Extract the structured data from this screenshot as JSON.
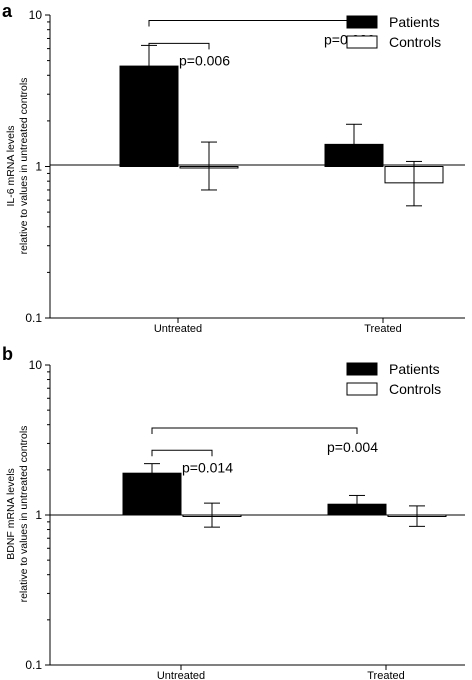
{
  "chart_data": [
    {
      "panel": "a",
      "type": "bar",
      "yscale": "log",
      "ylim": [
        0.1,
        10
      ],
      "yticks": [
        "0.1",
        "1",
        "10"
      ],
      "ylabel_line1": "IL-6 mRNA levels",
      "ylabel_line2": "relative to values in untreated controls",
      "categories": [
        "Untreated",
        "Treated"
      ],
      "series": [
        {
          "name": "Patients",
          "color": "#000000",
          "values": [
            4.6,
            1.4
          ],
          "err_low": [
            3.3,
            1.04
          ],
          "err_high": [
            6.3,
            1.9
          ]
        },
        {
          "name": "Controls",
          "color": "#ffffff",
          "values": [
            1.0,
            0.78
          ],
          "err_low": [
            0.7,
            0.55
          ],
          "err_high": [
            1.45,
            1.08
          ]
        }
      ],
      "legend": {
        "placement": "top-right"
      },
      "annotations": [
        {
          "text": "p=0.006",
          "from": "Untreated|Patients",
          "to": "Untreated|Controls",
          "level": 6.5
        },
        {
          "text": "p=0.029",
          "from": "Untreated|Patients",
          "to": "Treated|Patients",
          "level": 9.2
        }
      ]
    },
    {
      "panel": "b",
      "type": "bar",
      "yscale": "log",
      "ylim": [
        0.1,
        10
      ],
      "yticks": [
        "0.1",
        "1",
        "10"
      ],
      "ylabel_line1": "BDNF mRNA levels",
      "ylabel_line2": "relative to values in untreated controls",
      "categories": [
        "Untreated",
        "Treated"
      ],
      "series": [
        {
          "name": "Patients",
          "color": "#000000",
          "values": [
            1.9,
            1.18
          ],
          "err_low": [
            1.6,
            1.02
          ],
          "err_high": [
            2.2,
            1.35
          ]
        },
        {
          "name": "Controls",
          "color": "#ffffff",
          "values": [
            1.0,
            0.99
          ],
          "err_low": [
            0.83,
            0.84
          ],
          "err_high": [
            1.2,
            1.15
          ]
        }
      ],
      "legend": {
        "placement": "top-right"
      },
      "annotations": [
        {
          "text": "p=0.014",
          "from": "Untreated|Patients",
          "to": "Untreated|Controls",
          "level": 2.7
        },
        {
          "text": "p=0.004",
          "from": "Untreated|Patients",
          "to": "Treated|Patients",
          "level": 3.8
        }
      ]
    }
  ]
}
